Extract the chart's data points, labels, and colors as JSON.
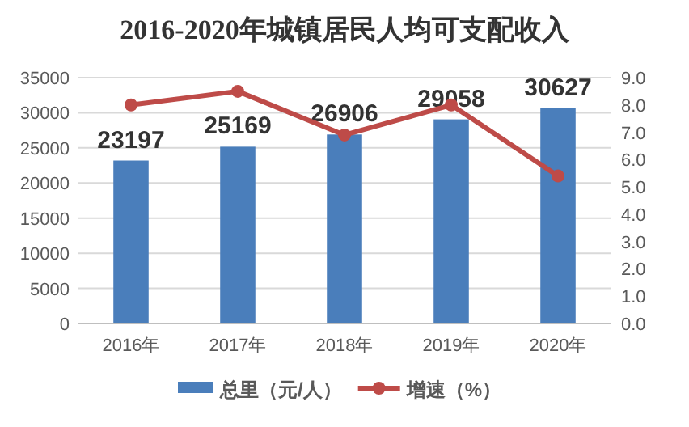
{
  "chart_data": {
    "type": "bar",
    "title": "2016-2020年城镇居民人均可支配收入",
    "categories": [
      "2016年",
      "2017年",
      "2018年",
      "2019年",
      "2020年"
    ],
    "series": [
      {
        "name": "总里（元/人）",
        "color": "#4a7ebb",
        "values": [
          23197,
          25169,
          26906,
          29058,
          30627
        ],
        "value_labels": [
          "23197",
          "25169",
          "26906",
          "29058",
          "30627"
        ]
      },
      {
        "name": "增速（%）",
        "type": "line",
        "axis": "y2",
        "color": "#be4b48",
        "marker": "circle",
        "values": [
          8.0,
          8.5,
          6.9,
          8.0,
          5.4
        ]
      }
    ],
    "ylim": [
      0,
      35000
    ],
    "yticks": [
      0,
      5000,
      10000,
      15000,
      20000,
      25000,
      30000,
      35000
    ],
    "y2lim": [
      0,
      9
    ],
    "y2ticks": [
      {
        "value": 0,
        "label": "0.0"
      },
      {
        "value": 1,
        "label": "1.0"
      },
      {
        "value": 2,
        "label": "2.0"
      },
      {
        "value": 3,
        "label": "3.0"
      },
      {
        "value": 4,
        "label": "4.0"
      },
      {
        "value": 5,
        "label": "5.0"
      },
      {
        "value": 6,
        "label": "6.0"
      },
      {
        "value": 7,
        "label": "7.0"
      },
      {
        "value": 8,
        "label": "8.0"
      },
      {
        "value": 9,
        "label": "9.0"
      }
    ],
    "grid": "y",
    "legend": "bottom"
  }
}
